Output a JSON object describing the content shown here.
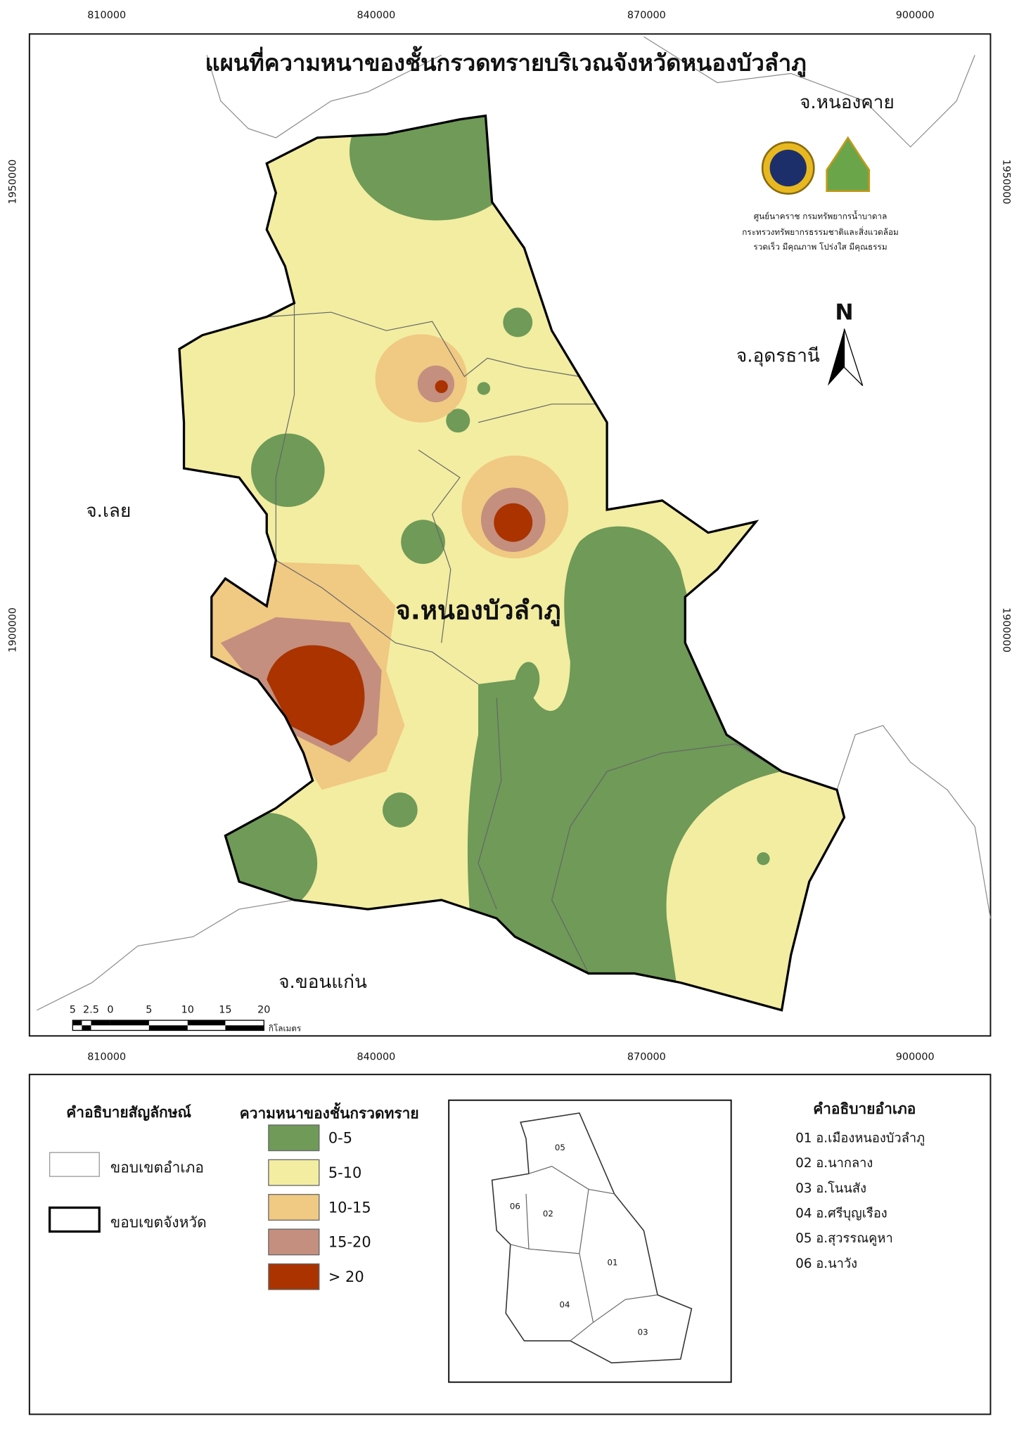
{
  "title": "แผนที่ความหนาของชั้นกรวดทรายบริเวณจังหวัดหนองบัวลำภู",
  "map": {
    "x_ticks": [
      "810000",
      "840000",
      "870000",
      "900000"
    ],
    "y_ticks": [
      "1950000",
      "1900000"
    ],
    "places": [
      "จ.หนองคาย",
      "จ.อุดรธานี",
      "จ.เลย",
      "จ.ขอนแก่น"
    ],
    "province_label": "จ.หนองบัวลำภู",
    "agency": [
      "ศูนย์นาคราช กรมทรัพยากรน้ำบาดาล",
      "กระทรวงทรัพยากรธรรมชาติและสิ่งแวดล้อม",
      "รวดเร็ว มีคุณภาพ โปร่งใส มีคุณธรรม"
    ],
    "north": "N",
    "scale_bar": {
      "labels": [
        "5",
        "2.5",
        "0",
        "5",
        "10",
        "15",
        "20"
      ],
      "unit": "กิโลเมตร"
    }
  },
  "legend": {
    "symbols": {
      "title": "คำอธิบายสัญลักษณ์",
      "items": [
        "ขอบเขตอำเภอ",
        "ขอบเขตจังหวัด"
      ]
    },
    "thickness": {
      "title": "ความหนาของชั้นกรวดทราย",
      "items": [
        {
          "label": "0-5",
          "color": "#6f9a58"
        },
        {
          "label": "5-10",
          "color": "#f2eda1"
        },
        {
          "label": "10-15",
          "color": "#f0c983"
        },
        {
          "label": "15-20",
          "color": "#c48f7e"
        },
        {
          "label": "> 20",
          "color": "#aa3300"
        }
      ]
    },
    "districts": {
      "title": "คำอธิบายอำเภอ",
      "items": [
        "01 อ.เมืองหนองบัวลำภู",
        "02 อ.นากลาง",
        "03 อ.โนนสัง",
        "04 อ.ศรีบุญเรือง",
        "05 อ.สุวรรณคูหา",
        "06 อ.นาวัง"
      ]
    }
  },
  "inset": {
    "labels": [
      "05",
      "06",
      "02",
      "01",
      "04",
      "03"
    ]
  }
}
